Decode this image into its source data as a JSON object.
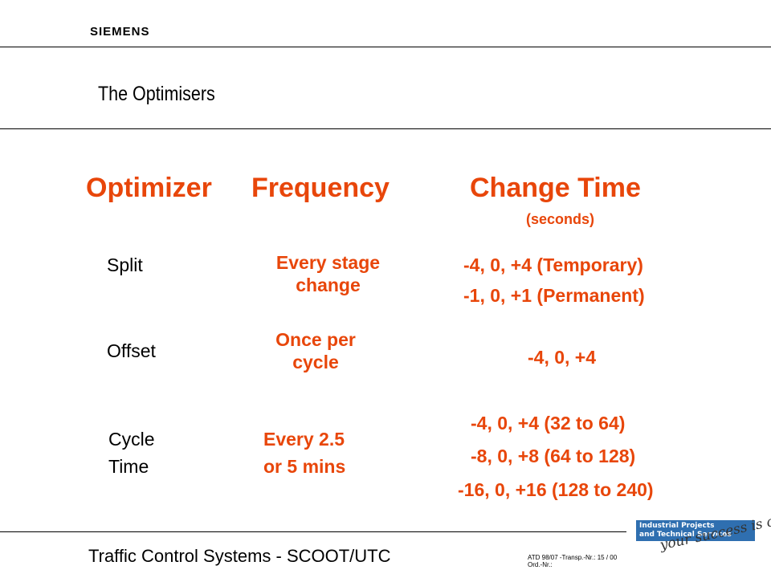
{
  "header": {
    "logo": "SIEMENS",
    "title": "The Optimisers"
  },
  "table": {
    "columns": [
      "Optimizer",
      "Frequency",
      "Change Time"
    ],
    "units": "(seconds)",
    "rows": [
      {
        "optimizer": "Split",
        "frequency": [
          "Every stage",
          "change"
        ],
        "change": [
          "-4, 0, +4 (Temporary)",
          "-1, 0, +1 (Permanent)"
        ]
      },
      {
        "optimizer": "Offset",
        "frequency": [
          "Once per",
          "cycle"
        ],
        "change": [
          "-4, 0, +4"
        ]
      },
      {
        "optimizer": [
          "Cycle",
          "Time"
        ],
        "frequency": [
          "Every 2.5",
          "or 5 mins"
        ],
        "change": [
          "-4, 0, +4 (32 to 64)",
          "-8, 0, +8 (64 to 128)",
          "-16, 0, +16 (128 to 240)"
        ]
      }
    ]
  },
  "footer": {
    "text": "Traffic Control Systems - SCOOT/UTC",
    "ref_line1": "ATD 98/07 -Transp.-Nr.: 15 / 00",
    "ref_line2": "Ord.-Nr.:",
    "badge_line1": "Industrial Projects",
    "badge_line2": "and Technical Services",
    "slogan": "your success is our goal"
  },
  "colors": {
    "accent": "#e8460a",
    "badge": "#2f6fb0"
  }
}
